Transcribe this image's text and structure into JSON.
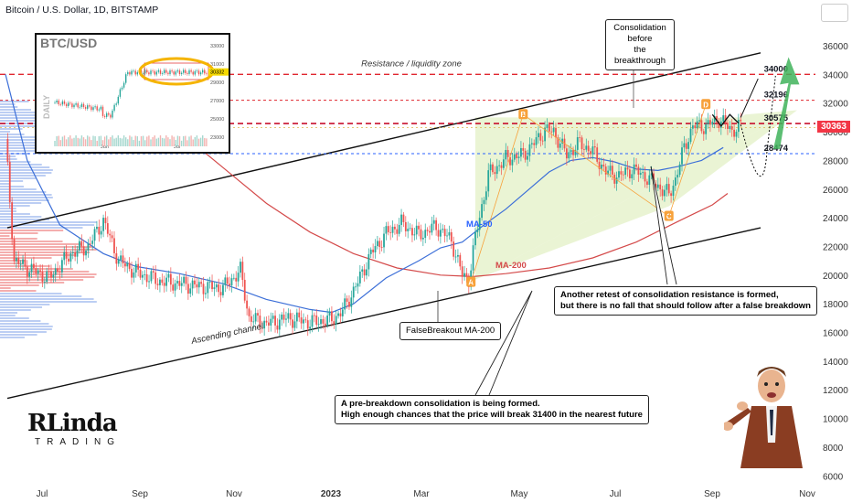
{
  "header": {
    "title": "Bitcoin / U.S. Dollar, 1D, BITSTAMP"
  },
  "colors": {
    "resistance": "#e0262f",
    "support_blue": "#2962ff",
    "ma50": "#3c6fd8",
    "ma200": "#d44a4a",
    "triangle": "#d8ecb0",
    "price_tag": "#f23645"
  },
  "price_tag": "30363",
  "chart_data": {
    "type": "candlestick",
    "title": "Bitcoin / U.S. Dollar, 1D, BITSTAMP",
    "y_ticks": [
      6000,
      8000,
      10000,
      12000,
      14000,
      16000,
      18000,
      20000,
      22000,
      24000,
      26000,
      28000,
      30000,
      32000,
      34000,
      36000
    ],
    "x_ticks": [
      "Jul",
      "Sep",
      "Nov",
      "2023",
      "Mar",
      "May",
      "Jul",
      "Sep",
      "Nov"
    ],
    "ylim": [
      5200,
      38600
    ],
    "level_labels": [
      "34000",
      "32196",
      "30575",
      "28474"
    ],
    "levels": [
      34000,
      32196,
      30575,
      28474
    ],
    "price_path": [
      [
        0,
        29500
      ],
      [
        4,
        21000
      ],
      [
        10,
        20500
      ],
      [
        20,
        19800
      ],
      [
        30,
        21500
      ],
      [
        38,
        22000
      ],
      [
        45,
        23800
      ],
      [
        52,
        21000
      ],
      [
        60,
        20200
      ],
      [
        70,
        19600
      ],
      [
        80,
        19400
      ],
      [
        90,
        19200
      ],
      [
        100,
        19100
      ],
      [
        108,
        20300
      ],
      [
        112,
        17000
      ],
      [
        120,
        16600
      ],
      [
        130,
        17000
      ],
      [
        140,
        16700
      ],
      [
        150,
        16900
      ],
      [
        155,
        17500
      ],
      [
        162,
        19500
      ],
      [
        168,
        21500
      ],
      [
        175,
        22900
      ],
      [
        182,
        23600
      ],
      [
        190,
        22800
      ],
      [
        198,
        23400
      ],
      [
        205,
        22400
      ],
      [
        210,
        20000
      ],
      [
        213,
        19700
      ],
      [
        216,
        22600
      ],
      [
        222,
        27000
      ],
      [
        230,
        28100
      ],
      [
        238,
        28400
      ],
      [
        243,
        29200
      ],
      [
        248,
        30100
      ],
      [
        252,
        30000
      ],
      [
        258,
        28400
      ],
      [
        264,
        29200
      ],
      [
        270,
        28600
      ],
      [
        276,
        27200
      ],
      [
        282,
        26900
      ],
      [
        288,
        27400
      ],
      [
        294,
        26900
      ],
      [
        300,
        26200
      ],
      [
        305,
        25600
      ],
      [
        308,
        26700
      ],
      [
        312,
        28900
      ],
      [
        316,
        30400
      ],
      [
        322,
        30400
      ],
      [
        328,
        30900
      ],
      [
        334,
        30100
      ],
      [
        338,
        30363
      ]
    ],
    "ma50_path": [
      [
        0,
        34000
      ],
      [
        10,
        28000
      ],
      [
        25,
        23500
      ],
      [
        45,
        21500
      ],
      [
        60,
        20600
      ],
      [
        80,
        20100
      ],
      [
        100,
        19400
      ],
      [
        120,
        18300
      ],
      [
        140,
        17600
      ],
      [
        150,
        17400
      ],
      [
        160,
        18000
      ],
      [
        175,
        19800
      ],
      [
        190,
        21000
      ],
      [
        200,
        21900
      ],
      [
        210,
        22300
      ],
      [
        220,
        23500
      ],
      [
        230,
        24600
      ],
      [
        240,
        25900
      ],
      [
        250,
        27200
      ],
      [
        260,
        28000
      ],
      [
        270,
        28200
      ],
      [
        280,
        27900
      ],
      [
        290,
        27400
      ],
      [
        300,
        27300
      ],
      [
        310,
        27600
      ],
      [
        320,
        28000
      ],
      [
        330,
        28900
      ]
    ],
    "ma200_path": [
      [
        60,
        32000
      ],
      [
        80,
        30000
      ],
      [
        100,
        27500
      ],
      [
        120,
        25000
      ],
      [
        140,
        23000
      ],
      [
        160,
        21500
      ],
      [
        180,
        20500
      ],
      [
        200,
        20000
      ],
      [
        215,
        19900
      ],
      [
        230,
        20100
      ],
      [
        250,
        20500
      ],
      [
        270,
        21200
      ],
      [
        290,
        22300
      ],
      [
        310,
        23800
      ],
      [
        325,
        24900
      ],
      [
        332,
        25700
      ]
    ],
    "annotations": [
      "Resistance / liquidity zone",
      "Ascending channel",
      "MA-50",
      "MA-200",
      "FalseBreakout MA-200",
      "Consolidation before the breakthrough"
    ],
    "pattern_points": [
      "A",
      "B",
      "C",
      "D"
    ]
  },
  "callouts": {
    "consolidation_l1": "Consolidation",
    "consolidation_l2": "before",
    "consolidation_l3": "the breakthrough",
    "false_breakout": "FalseBreakout MA-200",
    "retest_l1": "Another retest of consolidation resistance is formed,",
    "retest_l2": "but there is no fall that should follow after a false breakdown",
    "prebreak_l1": "A pre-breakdown consolidation is being formed.",
    "prebreak_l2": "High enough chances that the price will break 31400 in the nearest future"
  },
  "inset": {
    "title": "BTC/USD",
    "side_label": "DAILY",
    "x_labels": [
      "Jun",
      "Jul"
    ],
    "y_labels": [
      "33000",
      "31000",
      "29000",
      "27000",
      "25000",
      "23000"
    ],
    "last": "30332"
  },
  "logo": {
    "name": "Linda",
    "sub": "TRADING"
  }
}
